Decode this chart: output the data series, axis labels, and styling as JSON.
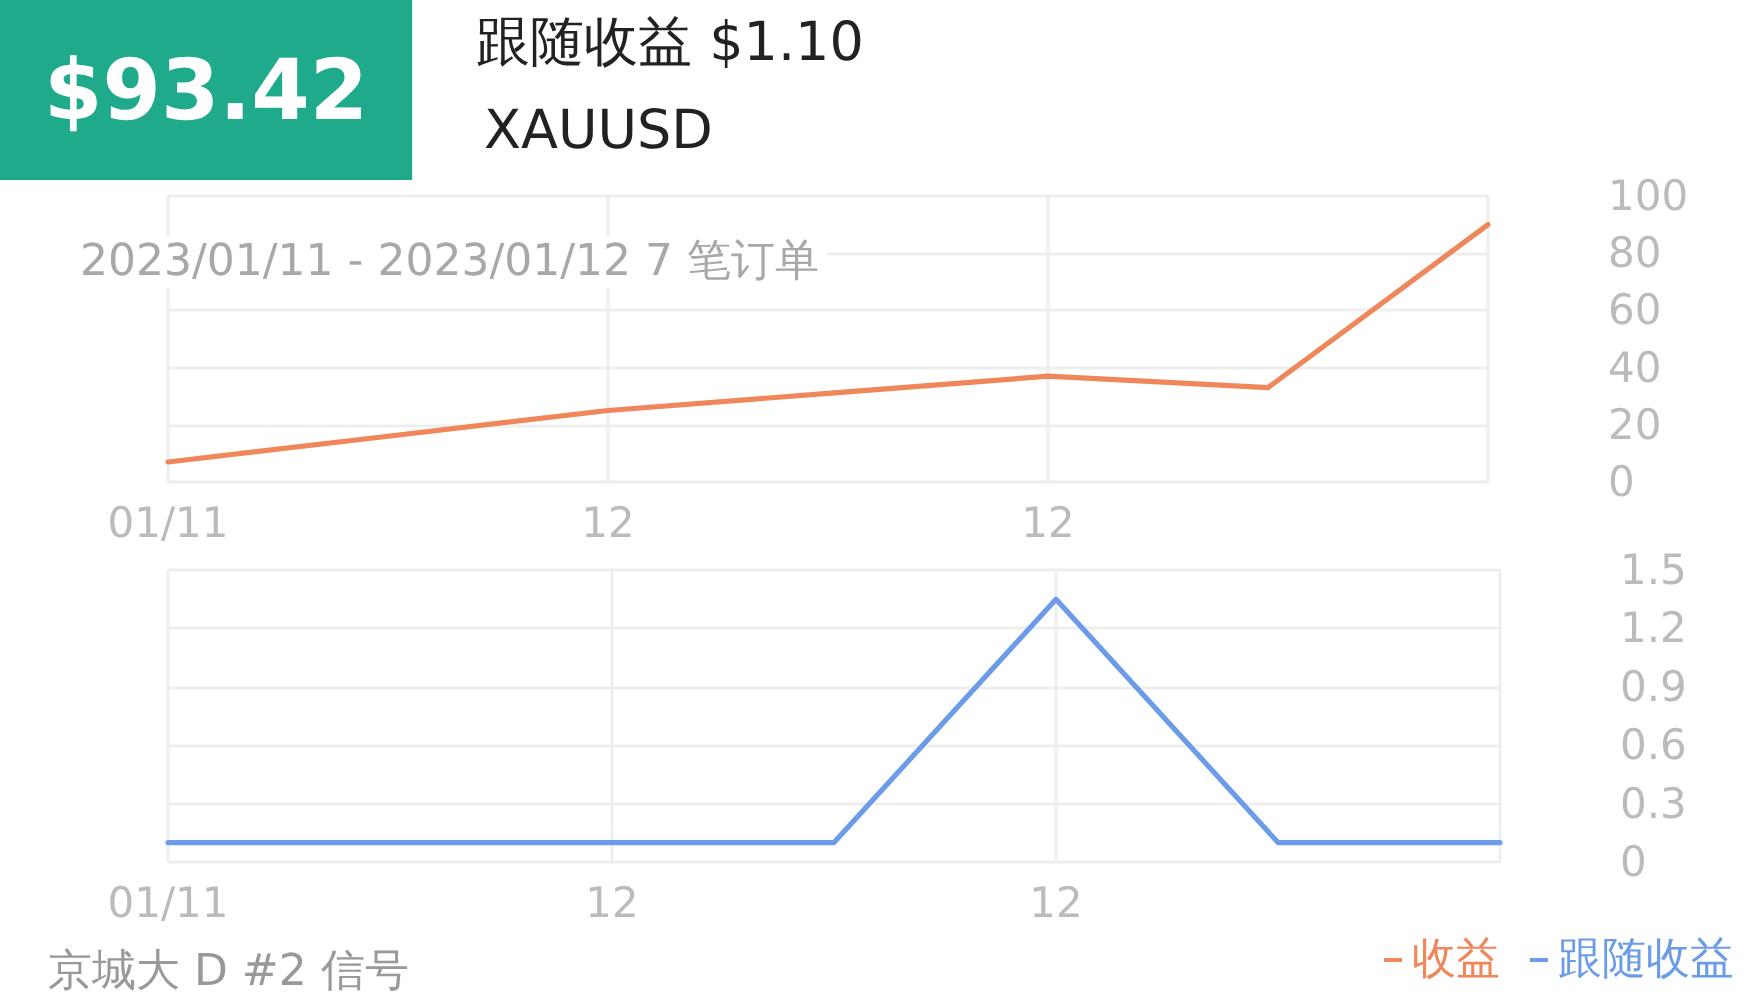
{
  "chart_data": [
    {
      "type": "line",
      "title": "$93.42",
      "subtitle": "跟随收益 $1.10",
      "annotations": [
        "XAUUSD",
        "2023/01/11 - 2023/01/12 7 笔订单"
      ],
      "categories": [
        "01/11",
        null,
        "12",
        null,
        "12",
        null,
        null
      ],
      "series": [
        {
          "name": "收益",
          "color": "#f0875a",
          "values": [
            7,
            16,
            25,
            31,
            37,
            33,
            90
          ]
        }
      ],
      "ylim": [
        0,
        100
      ],
      "yticks": [
        0,
        20,
        40,
        60,
        80,
        100
      ],
      "grid": true,
      "legend": "bottom right"
    },
    {
      "type": "line",
      "annotations": [
        "京城大 D #2 信号"
      ],
      "categories": [
        "01/11",
        null,
        "12",
        null,
        "12",
        null,
        null
      ],
      "series": [
        {
          "name": "跟随收益",
          "color": "#6c9ce8",
          "values": [
            0.1,
            0.1,
            0.1,
            0.1,
            1.35,
            0.1,
            0.1
          ]
        }
      ],
      "ylim": [
        0,
        1.5
      ],
      "yticks": [
        0,
        0.3,
        0.6,
        0.9,
        1.2,
        1.5
      ],
      "grid": true,
      "legend": "bottom right"
    }
  ]
}
